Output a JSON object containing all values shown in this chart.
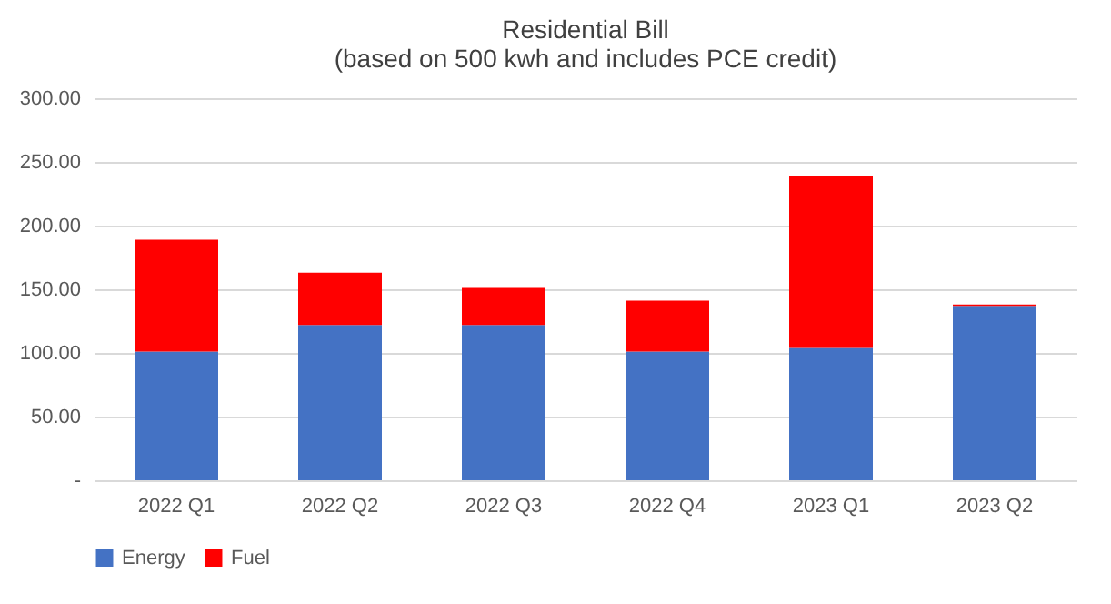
{
  "chart_data": {
    "type": "bar",
    "title": "Residential Bill",
    "subtitle": "(based on 500 kwh and includes PCE credit)",
    "categories": [
      "2022 Q1",
      "2022 Q2",
      "2022 Q3",
      "2022 Q4",
      "2023 Q1",
      "2023 Q2"
    ],
    "series": [
      {
        "name": "Energy",
        "color": "#4472c4",
        "values": [
          101,
          122,
          122,
          101,
          104,
          137
        ]
      },
      {
        "name": "Fuel",
        "color": "#ff0000",
        "values": [
          88,
          41,
          29,
          40,
          135,
          1
        ]
      }
    ],
    "stacked": true,
    "ylim": [
      0,
      300
    ],
    "yticks": [
      {
        "value": 0,
        "label": "-"
      },
      {
        "value": 50,
        "label": "50.00"
      },
      {
        "value": 100,
        "label": "100.00"
      },
      {
        "value": 150,
        "label": "150.00"
      },
      {
        "value": 200,
        "label": "200.00"
      },
      {
        "value": 250,
        "label": "250.00"
      },
      {
        "value": 300,
        "label": "300.00"
      }
    ],
    "grid": "y",
    "legend": "bottom"
  }
}
